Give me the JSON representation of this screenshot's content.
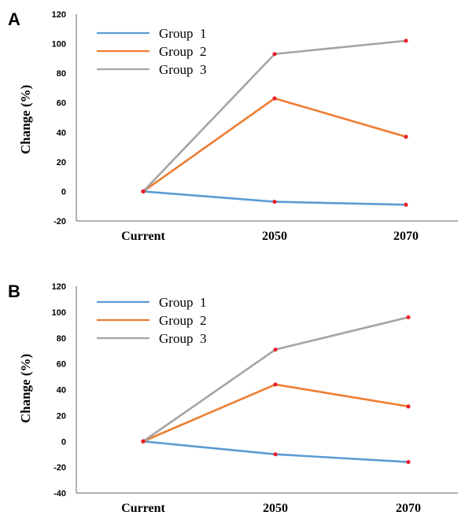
{
  "chart_data": [
    {
      "panel": "A",
      "type": "line",
      "categories": [
        "Current",
        "2050",
        "2070"
      ],
      "ylabel": "Change (%)",
      "ylim": [
        -20,
        120
      ],
      "yticks": [
        -20,
        0,
        20,
        40,
        60,
        80,
        100,
        120
      ],
      "legend_position": "top-left",
      "grid": false,
      "series": [
        {
          "name": "Group  1",
          "color": "#5b9bd5",
          "values": [
            0,
            -7,
            -9
          ]
        },
        {
          "name": "Group  2",
          "color": "#ed7d31",
          "values": [
            0,
            63,
            37
          ]
        },
        {
          "name": "Group  3",
          "color": "#a5a5a5",
          "values": [
            0,
            93,
            102
          ]
        }
      ],
      "marker_color": "#e8202a"
    },
    {
      "panel": "B",
      "type": "line",
      "categories": [
        "Current",
        "2050",
        "2070"
      ],
      "ylabel": "Change (%)",
      "ylim": [
        -40,
        120
      ],
      "yticks": [
        -40,
        -20,
        0,
        20,
        40,
        60,
        80,
        100,
        120
      ],
      "legend_position": "top-left",
      "grid": false,
      "series": [
        {
          "name": "Group  1",
          "color": "#5b9bd5",
          "values": [
            0,
            -10,
            -16
          ]
        },
        {
          "name": "Group  2",
          "color": "#ed7d31",
          "values": [
            0,
            44,
            27
          ]
        },
        {
          "name": "Group  3",
          "color": "#a5a5a5",
          "values": [
            0,
            71,
            96
          ]
        }
      ],
      "marker_color": "#e8202a"
    }
  ]
}
